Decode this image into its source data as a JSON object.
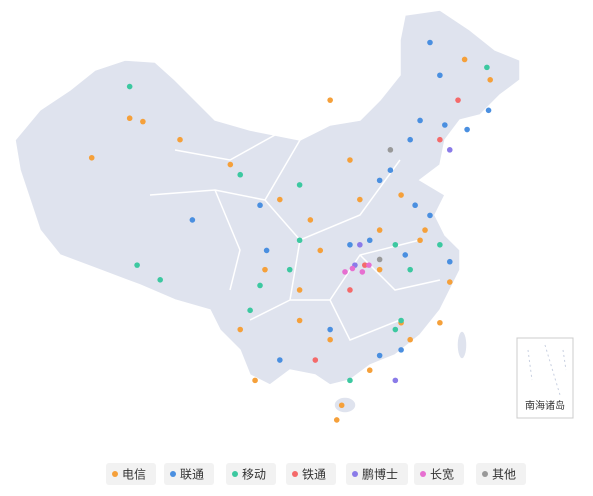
{
  "chart_data": {
    "type": "scatter-map",
    "inset_label": "南海诸岛",
    "series": [
      {
        "name": "电信",
        "color": "#f5a03a",
        "lon": [
          86.9,
          88.5,
          82.3,
          93.0,
          99.1,
          111.2,
          113.6,
          117.2,
          122.1,
          107.5,
          103.3,
          100.3,
          102.1,
          107.5,
          111.2,
          116.0,
          112.0,
          112.6,
          119.8,
          124.5,
          125.7,
          108.8,
          114.8,
          119.8,
          122.7,
          127.5,
          130.6,
          105.1,
          110.0,
          117.2,
          120.9
        ],
        "lat": [
          44.1,
          43.8,
          40.6,
          42.2,
          40.0,
          45.7,
          40.4,
          34.2,
          33.3,
          28.9,
          30.7,
          25.4,
          20.9,
          26.2,
          24.5,
          21.8,
          17.4,
          18.7,
          26.0,
          26.0,
          29.6,
          35.1,
          36.9,
          37.3,
          34.2,
          49.3,
          47.5,
          36.9,
          32.4,
          30.7,
          24.5
        ]
      },
      {
        "name": "联通",
        "color": "#4a8fe0",
        "lon": [
          123.3,
          124.5,
          130.4,
          127.8,
          120.9,
          118.5,
          117.2,
          94.5,
          102.7,
          113.6,
          116.0,
          121.5,
          123.3,
          120.3,
          125.7,
          119.8,
          117.2,
          111.2,
          105.1,
          103.5,
          125.1,
          122.1
        ],
        "lat": [
          50.8,
          47.9,
          44.8,
          43.1,
          42.2,
          39.5,
          38.6,
          35.1,
          36.4,
          32.9,
          33.3,
          36.4,
          35.5,
          32.0,
          31.4,
          23.6,
          23.1,
          25.4,
          22.7,
          32.4,
          43.5,
          43.9
        ]
      },
      {
        "name": "移动",
        "color": "#3cc8a0",
        "lon": [
          86.9,
          87.8,
          90.6,
          100.3,
          107.5,
          119.1,
          120.9,
          119.8,
          119.1,
          102.7,
          101.5,
          106.3,
          113.6,
          130.2,
          124.5,
          107.5
        ],
        "lat": [
          46.9,
          31.1,
          29.8,
          39.1,
          38.2,
          32.9,
          30.7,
          26.2,
          25.4,
          29.3,
          27.1,
          30.7,
          20.9,
          48.6,
          32.9,
          33.3
        ]
      },
      {
        "name": "铁通",
        "color": "#f46a6a",
        "lon": [
          126.7,
          109.4,
          113.6,
          124.5,
          115.4
        ],
        "lat": [
          45.7,
          22.7,
          28.9,
          42.2,
          31.1
        ]
      },
      {
        "name": "鹏博士",
        "color": "#8a7be8",
        "lon": [
          114.2,
          114.8,
          119.1,
          125.7
        ],
        "lat": [
          31.1,
          32.9,
          20.9,
          41.3
        ]
      },
      {
        "name": "长宽",
        "color": "#e66fd0",
        "lon": [
          113.9,
          115.1,
          115.9,
          113.0
        ],
        "lat": [
          30.8,
          30.5,
          31.1,
          30.5
        ]
      },
      {
        "name": "其他",
        "color": "#999999",
        "lon": [
          118.5,
          117.2
        ],
        "lat": [
          41.3,
          31.6
        ]
      }
    ]
  }
}
